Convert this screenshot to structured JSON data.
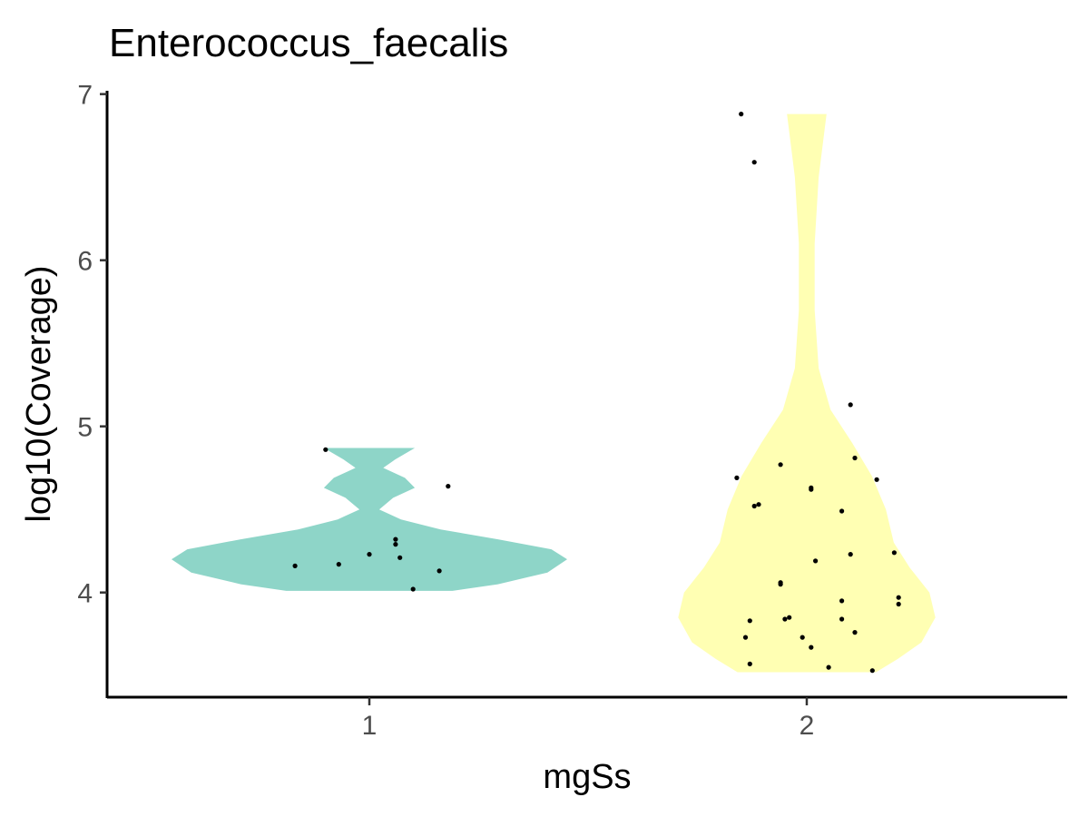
{
  "chart_data": {
    "type": "violin",
    "title": "Enterococcus_faecalis",
    "xlabel": "mgSs",
    "ylabel": "log10(Coverage)",
    "categories": [
      "1",
      "2"
    ],
    "x_ticks": [
      "1",
      "2"
    ],
    "y_ticks": [
      4,
      5,
      6,
      7
    ],
    "ylim": [
      3.37,
      7.02
    ],
    "grid": false,
    "legend": "none",
    "series": [
      {
        "category": "1",
        "color": "#8ED5C8",
        "y_range": [
          4.01,
          4.87
        ],
        "density": [
          {
            "y": 4.01,
            "d": 0.42
          },
          {
            "y": 4.05,
            "d": 0.65
          },
          {
            "y": 4.12,
            "d": 0.9
          },
          {
            "y": 4.2,
            "d": 1.0
          },
          {
            "y": 4.26,
            "d": 0.92
          },
          {
            "y": 4.32,
            "d": 0.65
          },
          {
            "y": 4.38,
            "d": 0.36
          },
          {
            "y": 4.44,
            "d": 0.16
          },
          {
            "y": 4.5,
            "d": 0.05
          },
          {
            "y": 4.57,
            "d": 0.12
          },
          {
            "y": 4.63,
            "d": 0.23
          },
          {
            "y": 4.69,
            "d": 0.18
          },
          {
            "y": 4.75,
            "d": 0.07
          },
          {
            "y": 4.8,
            "d": 0.13
          },
          {
            "y": 4.87,
            "d": 0.23
          }
        ],
        "points": [
          {
            "x": 0.83,
            "y": 4.16
          },
          {
            "x": 0.93,
            "y": 4.17
          },
          {
            "x": 1.0,
            "y": 4.23
          },
          {
            "x": 1.06,
            "y": 4.32
          },
          {
            "x": 1.06,
            "y": 4.29
          },
          {
            "x": 1.07,
            "y": 4.21
          },
          {
            "x": 1.1,
            "y": 4.02
          },
          {
            "x": 1.16,
            "y": 4.13
          },
          {
            "x": 1.18,
            "y": 4.64
          },
          {
            "x": 0.9,
            "y": 4.86
          }
        ]
      },
      {
        "category": "2",
        "color": "#FFFFB3",
        "y_range": [
          3.52,
          6.88
        ],
        "density": [
          {
            "y": 3.52,
            "d": 0.35
          },
          {
            "y": 3.6,
            "d": 0.46
          },
          {
            "y": 3.7,
            "d": 0.58
          },
          {
            "y": 3.85,
            "d": 0.65
          },
          {
            "y": 4.0,
            "d": 0.62
          },
          {
            "y": 4.15,
            "d": 0.52
          },
          {
            "y": 4.3,
            "d": 0.44
          },
          {
            "y": 4.5,
            "d": 0.4
          },
          {
            "y": 4.7,
            "d": 0.33
          },
          {
            "y": 4.9,
            "d": 0.23
          },
          {
            "y": 5.1,
            "d": 0.12
          },
          {
            "y": 5.35,
            "d": 0.06
          },
          {
            "y": 5.7,
            "d": 0.04
          },
          {
            "y": 6.1,
            "d": 0.04
          },
          {
            "y": 6.5,
            "d": 0.06
          },
          {
            "y": 6.88,
            "d": 0.1
          }
        ],
        "points": [
          {
            "x": 1.85,
            "y": 6.88
          },
          {
            "x": 1.88,
            "y": 6.59
          },
          {
            "x": 2.1,
            "y": 5.13
          },
          {
            "x": 2.11,
            "y": 4.81
          },
          {
            "x": 1.94,
            "y": 4.77
          },
          {
            "x": 1.84,
            "y": 4.69
          },
          {
            "x": 2.16,
            "y": 4.68
          },
          {
            "x": 2.01,
            "y": 4.63
          },
          {
            "x": 2.01,
            "y": 4.62
          },
          {
            "x": 1.89,
            "y": 4.53
          },
          {
            "x": 1.88,
            "y": 4.52
          },
          {
            "x": 2.08,
            "y": 4.49
          },
          {
            "x": 2.2,
            "y": 4.24
          },
          {
            "x": 2.1,
            "y": 4.23
          },
          {
            "x": 2.02,
            "y": 4.19
          },
          {
            "x": 1.94,
            "y": 4.06
          },
          {
            "x": 1.94,
            "y": 4.05
          },
          {
            "x": 2.21,
            "y": 3.97
          },
          {
            "x": 2.08,
            "y": 3.95
          },
          {
            "x": 2.21,
            "y": 3.93
          },
          {
            "x": 1.96,
            "y": 3.85
          },
          {
            "x": 1.95,
            "y": 3.84
          },
          {
            "x": 2.08,
            "y": 3.84
          },
          {
            "x": 1.87,
            "y": 3.83
          },
          {
            "x": 2.11,
            "y": 3.76
          },
          {
            "x": 1.86,
            "y": 3.73
          },
          {
            "x": 1.99,
            "y": 3.73
          },
          {
            "x": 2.01,
            "y": 3.67
          },
          {
            "x": 1.87,
            "y": 3.57
          },
          {
            "x": 2.05,
            "y": 3.55
          },
          {
            "x": 2.15,
            "y": 3.53
          }
        ]
      }
    ]
  }
}
